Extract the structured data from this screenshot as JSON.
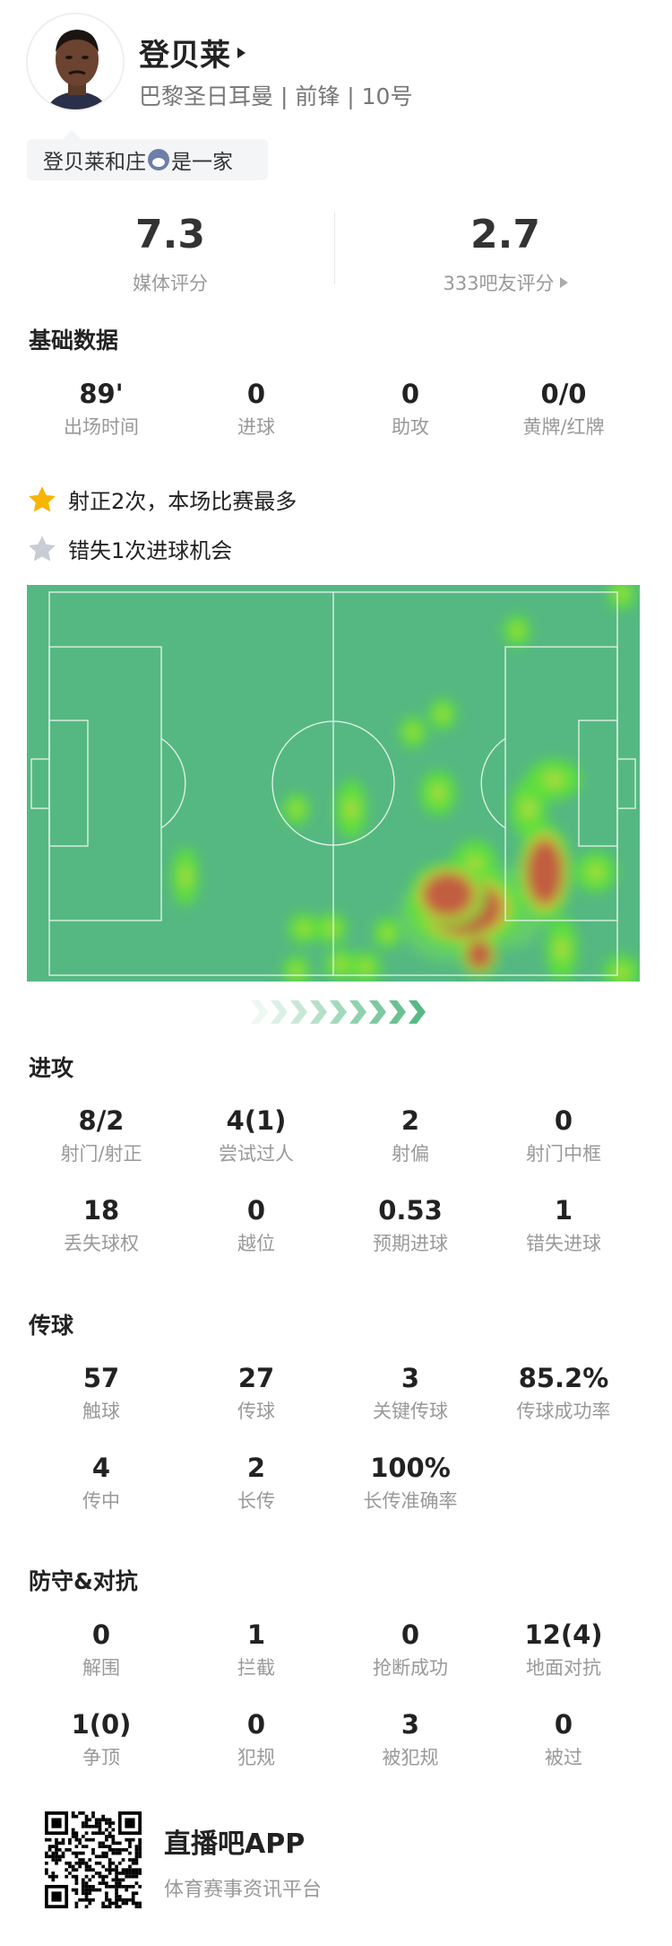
{
  "player": {
    "name": "登贝莱",
    "subtitle": "巴黎圣日耳曼 | 前锋 | 10号",
    "bubble": "登贝莱和庄",
    "bubble_suffix": "是一家",
    "bubble_icon": "wolf-mascot-icon"
  },
  "ratings": {
    "media": {
      "value": "7.3",
      "label": "媒体评分"
    },
    "fans": {
      "value": "2.7",
      "label": "333吧友评分"
    }
  },
  "basic": {
    "title": "基础数据",
    "items": [
      {
        "value": "89'",
        "label": "出场时间"
      },
      {
        "value": "0",
        "label": "进球"
      },
      {
        "value": "0",
        "label": "助攻"
      },
      {
        "value": "0/0",
        "label": "黄牌/红牌"
      }
    ]
  },
  "highlights": [
    {
      "icon": "gold-star-icon",
      "text": "射正2次，本场比赛最多",
      "color": "#F7B500"
    },
    {
      "icon": "gray-star-icon",
      "text": "错失1次进球机会",
      "color": "#C8CCD4"
    }
  ],
  "heatmap": {
    "pitch_color": "#55B882",
    "hot_color": "#C0573F",
    "warm_color": "#5EE03A",
    "attack_direction": "right"
  },
  "attack": {
    "title": "进攻",
    "items": [
      {
        "value": "8/2",
        "label": "射门/射正"
      },
      {
        "value": "4(1)",
        "label": "尝试过人"
      },
      {
        "value": "2",
        "label": "射偏"
      },
      {
        "value": "0",
        "label": "射门中框"
      },
      {
        "value": "18",
        "label": "丢失球权"
      },
      {
        "value": "0",
        "label": "越位"
      },
      {
        "value": "0.53",
        "label": "预期进球"
      },
      {
        "value": "1",
        "label": "错失进球"
      }
    ]
  },
  "passing": {
    "title": "传球",
    "items": [
      {
        "value": "57",
        "label": "触球"
      },
      {
        "value": "27",
        "label": "传球"
      },
      {
        "value": "3",
        "label": "关键传球"
      },
      {
        "value": "85.2%",
        "label": "传球成功率"
      },
      {
        "value": "4",
        "label": "传中"
      },
      {
        "value": "2",
        "label": "长传"
      },
      {
        "value": "100%",
        "label": "长传准确率"
      }
    ]
  },
  "defense": {
    "title": "防守&对抗",
    "items": [
      {
        "value": "0",
        "label": "解围"
      },
      {
        "value": "1",
        "label": "拦截"
      },
      {
        "value": "0",
        "label": "抢断成功"
      },
      {
        "value": "12(4)",
        "label": "地面对抗"
      },
      {
        "value": "1(0)",
        "label": "争顶"
      },
      {
        "value": "0",
        "label": "犯规"
      },
      {
        "value": "3",
        "label": "被犯规"
      },
      {
        "value": "0",
        "label": "被过"
      }
    ]
  },
  "footer": {
    "app_name": "直播吧APP",
    "slogan": "体育赛事资讯平台"
  }
}
